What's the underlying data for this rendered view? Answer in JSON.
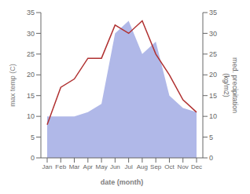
{
  "chart_data": {
    "type": "line",
    "categories": [
      "Jan",
      "Feb",
      "Mar",
      "Apr",
      "May",
      "Jun",
      "Jul",
      "Aug",
      "Sep",
      "Oct",
      "Nov",
      "Dec"
    ],
    "xlabel": "date (month)",
    "ylabel": "max temp (C)",
    "y2label": "med. precipitation\n(kg/m2)",
    "ylim": [
      0,
      35
    ],
    "yticks": [
      0,
      5,
      10,
      15,
      20,
      25,
      30,
      35
    ],
    "y2lim": [
      0,
      35
    ],
    "y2ticks": [
      0,
      5,
      10,
      15,
      20,
      25,
      30,
      35
    ],
    "grid": false,
    "series": [
      {
        "type": "area",
        "axis": "y2",
        "color": "#b0b8e8",
        "values": [
          10,
          10,
          10,
          11,
          13,
          30,
          33,
          25,
          28,
          15,
          12,
          11
        ]
      },
      {
        "type": "line",
        "color": "#b03030",
        "values": [
          8,
          17,
          19,
          24,
          24,
          32,
          30,
          33,
          25,
          20,
          14,
          11
        ]
      }
    ]
  }
}
